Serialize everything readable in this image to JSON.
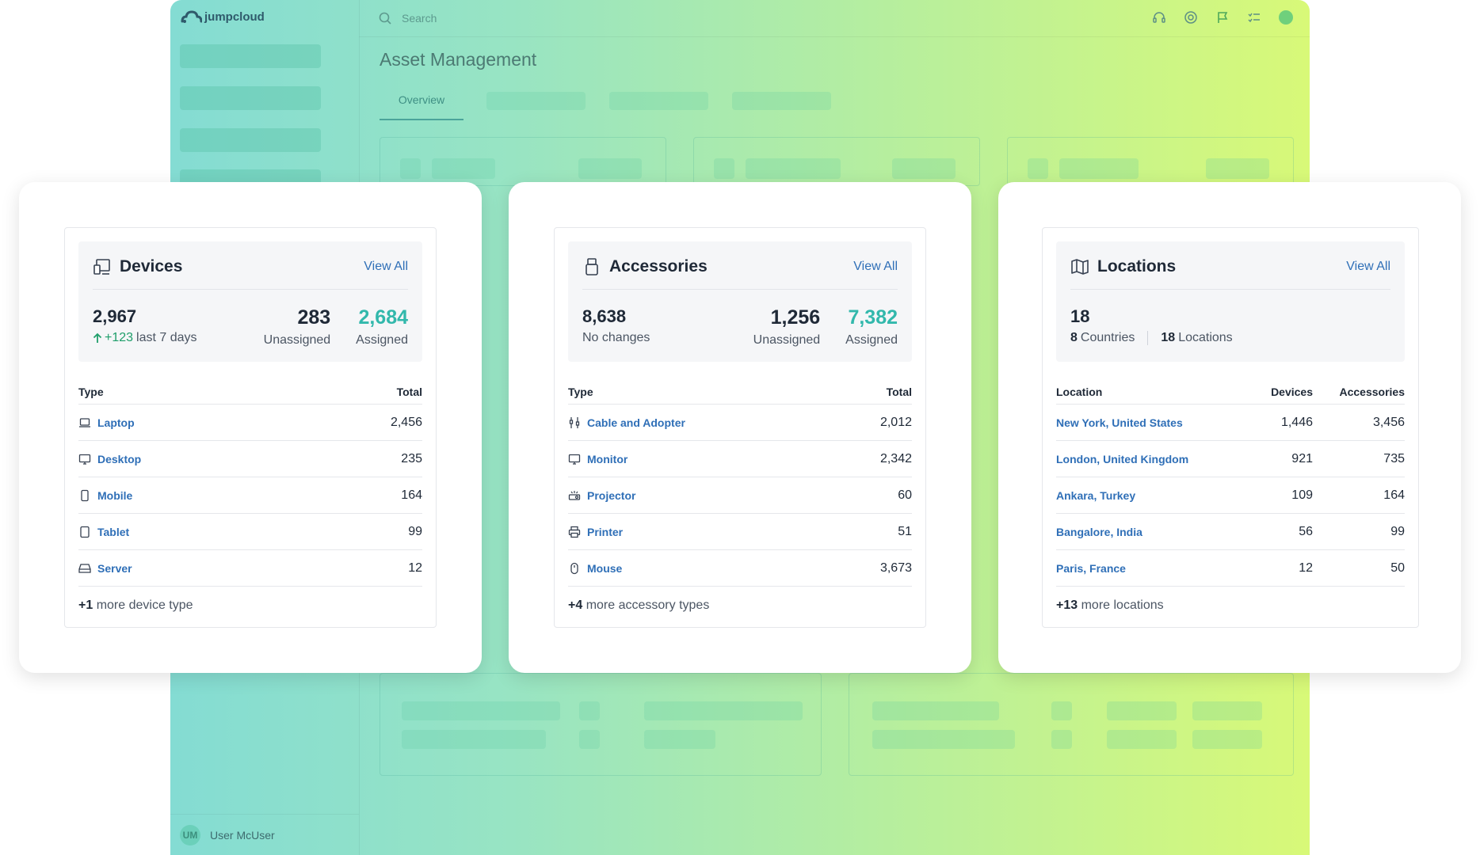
{
  "app": {
    "brand": "jumpcloud",
    "search_placeholder": "Search",
    "page_title": "Asset Management",
    "active_tab": "Overview",
    "user_initials": "UM",
    "user_name": "User McUser"
  },
  "colors": {
    "link": "#2f6fb7",
    "accent_teal": "#32b8ac",
    "trend_green": "#1e9e6a"
  },
  "devices": {
    "title": "Devices",
    "view_all": "View All",
    "total": "2,967",
    "trend_value": "+123",
    "trend_label": "last 7 days",
    "unassigned_value": "283",
    "unassigned_label": "Unassigned",
    "assigned_value": "2,684",
    "assigned_label": "Assigned",
    "col_type": "Type",
    "col_total": "Total",
    "rows": [
      {
        "icon": "laptop-icon",
        "name": "Laptop",
        "total": "2,456"
      },
      {
        "icon": "desktop-icon",
        "name": "Desktop",
        "total": "235"
      },
      {
        "icon": "mobile-icon",
        "name": "Mobile",
        "total": "164"
      },
      {
        "icon": "tablet-icon",
        "name": "Tablet",
        "total": "99"
      },
      {
        "icon": "server-icon",
        "name": "Server",
        "total": "12"
      }
    ],
    "more_count": "+1",
    "more_label": "more device type"
  },
  "accessories": {
    "title": "Accessories",
    "view_all": "View All",
    "total": "8,638",
    "sub_label": "No changes",
    "unassigned_value": "1,256",
    "unassigned_label": "Unassigned",
    "assigned_value": "7,382",
    "assigned_label": "Assigned",
    "col_type": "Type",
    "col_total": "Total",
    "rows": [
      {
        "icon": "cable-icon",
        "name": "Cable and Adopter",
        "total": "2,012"
      },
      {
        "icon": "monitor-icon",
        "name": "Monitor",
        "total": "2,342"
      },
      {
        "icon": "projector-icon",
        "name": "Projector",
        "total": "60"
      },
      {
        "icon": "printer-icon",
        "name": "Printer",
        "total": "51"
      },
      {
        "icon": "mouse-icon",
        "name": "Mouse",
        "total": "3,673"
      }
    ],
    "more_count": "+4",
    "more_label": "more accessory types"
  },
  "locations": {
    "title": "Locations",
    "view_all": "View All",
    "total": "18",
    "countries_count": "8",
    "countries_label": "Countries",
    "locations_count": "18",
    "locations_label": "Locations",
    "col_location": "Location",
    "col_devices": "Devices",
    "col_accessories": "Accessories",
    "rows": [
      {
        "name": "New York, United States",
        "devices": "1,446",
        "accessories": "3,456"
      },
      {
        "name": "London, United Kingdom",
        "devices": "921",
        "accessories": "735"
      },
      {
        "name": "Ankara, Turkey",
        "devices": "109",
        "accessories": "164"
      },
      {
        "name": "Bangalore, India",
        "devices": "56",
        "accessories": "99"
      },
      {
        "name": "Paris, France",
        "devices": "12",
        "accessories": "50"
      }
    ],
    "more_count": "+13",
    "more_label": "more locations"
  }
}
